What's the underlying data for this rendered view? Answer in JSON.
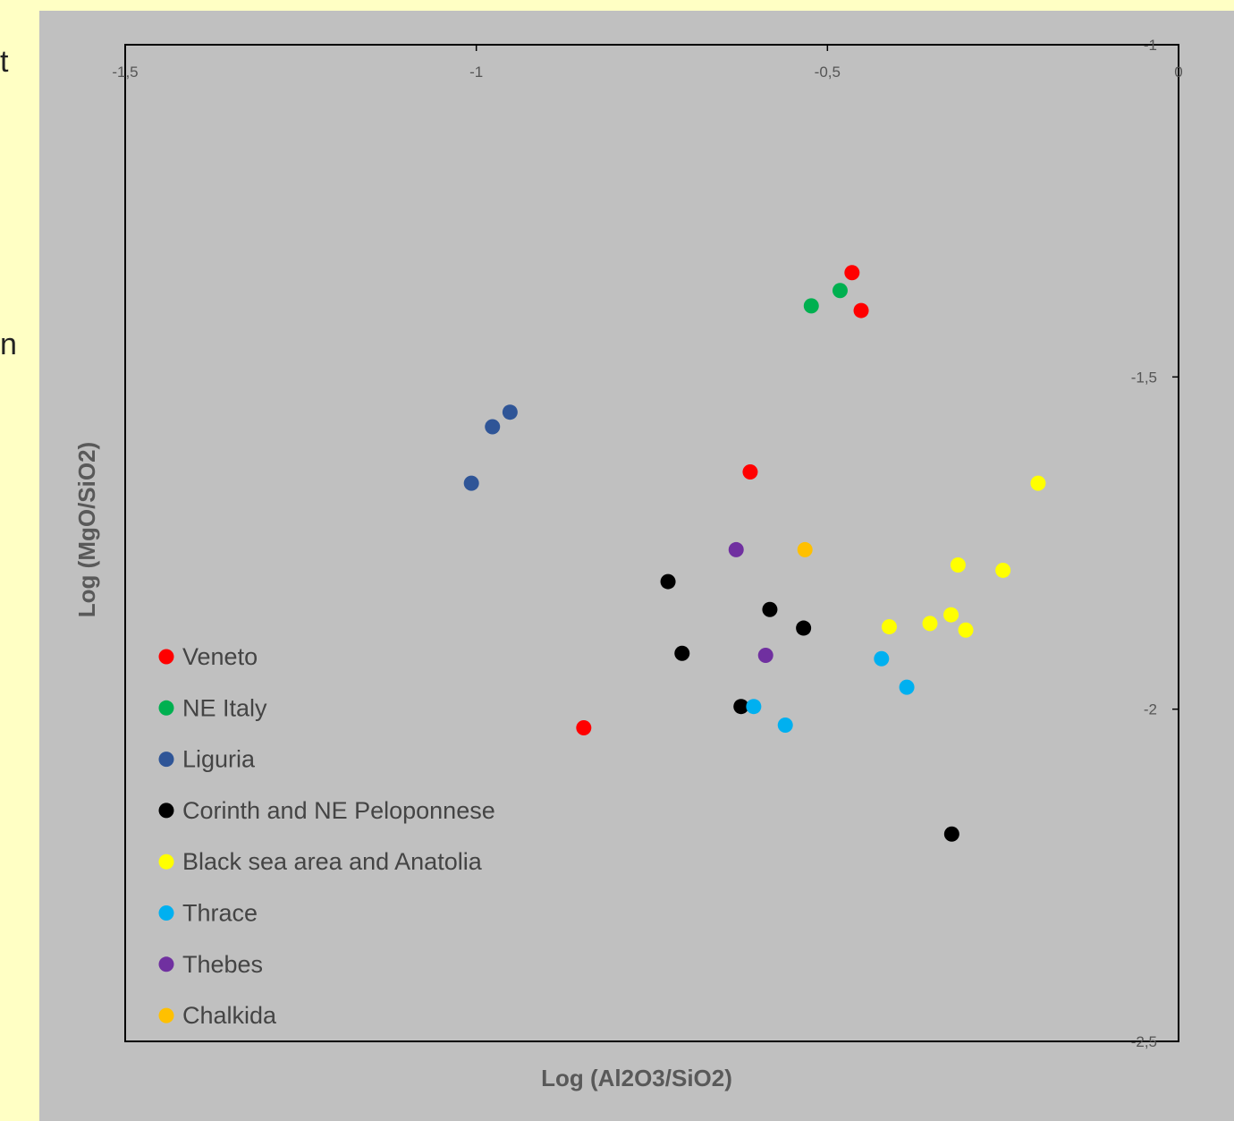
{
  "left_strip": {
    "glyphs": [
      "t",
      "n"
    ]
  },
  "chart_data": {
    "type": "scatter",
    "title": "",
    "xlabel": "Log (Al2O3/SiO2)",
    "ylabel": "Log (MgO/SiO2)",
    "xlim": [
      -1.5,
      0
    ],
    "ylim": [
      -2.5,
      -1
    ],
    "x_ticks": [
      -1.5,
      -1,
      -0.5,
      0
    ],
    "x_tick_labels": [
      "-1,5",
      "-1",
      "-0,5",
      "0"
    ],
    "y_ticks": [
      -1,
      -1.5,
      -2,
      -2.5
    ],
    "y_tick_labels": [
      "-1",
      "-1,5",
      "-2",
      "-2,5"
    ],
    "x_axis_position": "top",
    "y_axis_position": "right",
    "grid": false,
    "legend_position": "bottom-left",
    "series": [
      {
        "name": "Veneto",
        "color": "#ff0000",
        "points": [
          [
            -0.465,
            -1.343
          ],
          [
            -0.452,
            -1.4
          ],
          [
            -0.61,
            -1.643
          ],
          [
            -0.847,
            -2.028
          ]
        ]
      },
      {
        "name": "NE Italy",
        "color": "#00b050",
        "points": [
          [
            -0.523,
            -1.393
          ],
          [
            -0.482,
            -1.37
          ]
        ]
      },
      {
        "name": "Liguria",
        "color": "#2f5597",
        "points": [
          [
            -0.952,
            -1.553
          ],
          [
            -0.977,
            -1.575
          ],
          [
            -1.007,
            -1.66
          ]
        ]
      },
      {
        "name": "Corinth and NE Peloponnese",
        "color": "#000000",
        "points": [
          [
            -0.727,
            -1.808
          ],
          [
            -0.582,
            -1.85
          ],
          [
            -0.534,
            -1.878
          ],
          [
            -0.707,
            -1.916
          ],
          [
            -0.623,
            -1.996
          ],
          [
            -0.323,
            -2.188
          ]
        ]
      },
      {
        "name": "Black sea area and Anatolia",
        "color": "#ffff00",
        "points": [
          [
            -0.2,
            -1.66
          ],
          [
            -0.314,
            -1.783
          ],
          [
            -0.25,
            -1.791
          ],
          [
            -0.412,
            -1.876
          ],
          [
            -0.354,
            -1.871
          ],
          [
            -0.324,
            -1.858
          ],
          [
            -0.303,
            -1.881
          ]
        ]
      },
      {
        "name": "Thrace",
        "color": "#00b0f0",
        "points": [
          [
            -0.423,
            -1.924
          ],
          [
            -0.387,
            -1.967
          ],
          [
            -0.605,
            -1.996
          ],
          [
            -0.56,
            -2.024
          ]
        ]
      },
      {
        "name": "Thebes",
        "color": "#7030a0",
        "points": [
          [
            -0.63,
            -1.76
          ],
          [
            -0.588,
            -1.919
          ]
        ]
      },
      {
        "name": "Chalkida",
        "color": "#ffc000",
        "points": [
          [
            -0.532,
            -1.76
          ]
        ]
      }
    ]
  }
}
